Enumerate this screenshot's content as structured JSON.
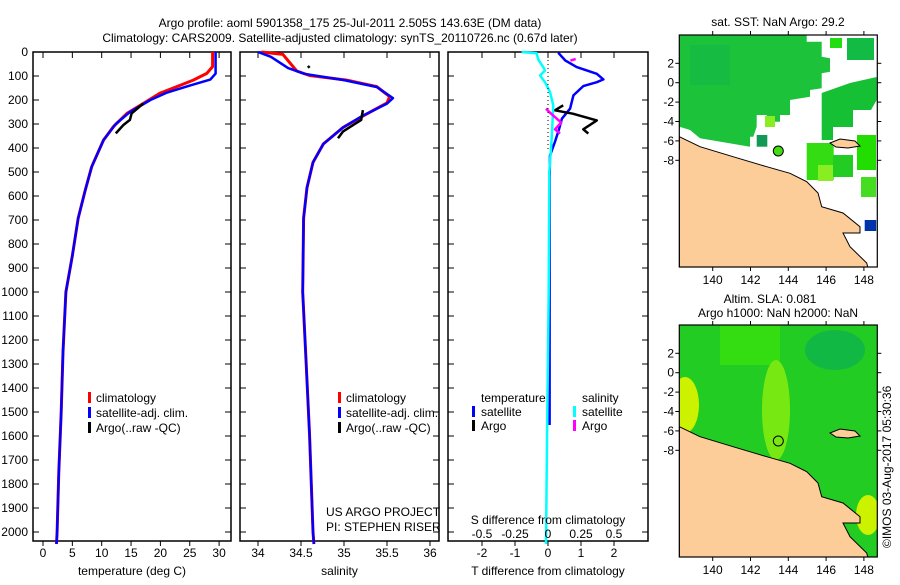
{
  "title": {
    "line1": "Argo profile: aoml 5901358_175 25-Jul-2011 2.505S 143.63E (DM data)",
    "line2": "Climatology: CARS2009. Satellite-adjusted climatology: synTS_20110726.nc (0.67d later)"
  },
  "colors": {
    "climatology": "#ff0000",
    "satellite": "#0000ff",
    "argo": "#000000",
    "s_satellite": "#00ffff",
    "s_argo": "#ff00ff",
    "land": "#fccc99",
    "ocean_green": "#22cc22"
  },
  "chart_data": [
    {
      "type": "line",
      "title": "",
      "xlabel": "temperature (deg C)",
      "ylabel": "",
      "xlim": [
        -1.5,
        32
      ],
      "ylim": [
        2050,
        0
      ],
      "xticks": [
        "0",
        "5",
        "10",
        "15",
        "20",
        "25",
        "30"
      ],
      "xtick_values": [
        0,
        5,
        10,
        15,
        20,
        25,
        30
      ],
      "yticks": [
        "0",
        "100",
        "200",
        "300",
        "400",
        "500",
        "600",
        "700",
        "800",
        "900",
        "1000",
        "1100",
        "1200",
        "1300",
        "1400",
        "1500",
        "1600",
        "1700",
        "1800",
        "1900",
        "2000"
      ],
      "legend": [
        "climatology",
        "satellite-adj. clim.",
        "Argo(..raw -QC)"
      ],
      "series": [
        {
          "name": "climatology",
          "color": "#ff0000",
          "points": [
            [
              28.9,
              0
            ],
            [
              28.9,
              61
            ],
            [
              27.9,
              89
            ],
            [
              25.6,
              117
            ],
            [
              22.8,
              144
            ],
            [
              19.9,
              172
            ],
            [
              17.1,
              214
            ],
            [
              14.3,
              256
            ],
            [
              12.0,
              311
            ],
            [
              10.3,
              367
            ],
            [
              8.3,
              478
            ],
            [
              7.2,
              575
            ],
            [
              6.0,
              692
            ],
            [
              5.0,
              850
            ],
            [
              3.9,
              1000
            ],
            [
              3.4,
              1250
            ],
            [
              3.1,
              1500
            ],
            [
              2.7,
              1750
            ],
            [
              2.4,
              2000
            ],
            [
              2.3,
              2050
            ]
          ]
        },
        {
          "name": "satellite-adj. clim.",
          "color": "#0000ff",
          "points": [
            [
              29.4,
              0
            ],
            [
              29.4,
              90
            ],
            [
              28.5,
              115
            ],
            [
              25.0,
              140
            ],
            [
              21.0,
              170
            ],
            [
              18.3,
              200
            ],
            [
              14.8,
              250
            ],
            [
              12.4,
              300
            ],
            [
              10.3,
              367
            ],
            [
              8.3,
              478
            ],
            [
              7.2,
              575
            ],
            [
              6.0,
              692
            ],
            [
              5.0,
              850
            ],
            [
              3.9,
              1000
            ],
            [
              3.4,
              1250
            ],
            [
              3.1,
              1500
            ],
            [
              2.7,
              1750
            ],
            [
              2.4,
              2000
            ],
            [
              2.3,
              2050
            ]
          ]
        },
        {
          "name": "Argo(..raw -QC)",
          "color": "#000000",
          "points": [
            [
              17.1,
              214
            ],
            [
              15.1,
              256
            ],
            [
              14.8,
              283
            ],
            [
              13.7,
              304
            ],
            [
              12.4,
              339
            ]
          ]
        }
      ]
    },
    {
      "type": "line",
      "xlabel": "salinity",
      "xlim": [
        33.8,
        36.1
      ],
      "ylim": [
        2050,
        0
      ],
      "xticks": [
        "34",
        "34.5",
        "35",
        "35.5",
        "36"
      ],
      "xtick_values": [
        34,
        34.5,
        35,
        35.5,
        36
      ],
      "legend": [
        "climatology",
        "satellite-adj. clim.",
        "Argo(..raw -QC)"
      ],
      "annotation": [
        "US ARGO PROJECT",
        "PI: STEPHEN RISER"
      ],
      "series": [
        {
          "name": "climatology",
          "color": "#ff0000",
          "points": [
            [
              34.04,
              0
            ],
            [
              34.29,
              10
            ],
            [
              34.45,
              79
            ],
            [
              34.6,
              98
            ],
            [
              35.03,
              117
            ],
            [
              35.38,
              144
            ],
            [
              35.53,
              186
            ],
            [
              35.5,
              212
            ],
            [
              35.22,
              267
            ],
            [
              34.99,
              314
            ],
            [
              34.76,
              383
            ],
            [
              34.64,
              460
            ],
            [
              34.57,
              565
            ],
            [
              34.53,
              692
            ],
            [
              34.52,
              1000
            ],
            [
              34.56,
              1300
            ],
            [
              34.6,
              1600
            ],
            [
              34.64,
              2000
            ],
            [
              34.65,
              2050
            ]
          ]
        },
        {
          "name": "satellite-adj. clim.",
          "color": "#0000ff",
          "points": [
            [
              34.0,
              0
            ],
            [
              34.15,
              20
            ],
            [
              34.35,
              67
            ],
            [
              34.54,
              91
            ],
            [
              35.0,
              117
            ],
            [
              35.38,
              146
            ],
            [
              35.57,
              192
            ],
            [
              35.5,
              215
            ],
            [
              35.22,
              265
            ],
            [
              34.99,
              314
            ],
            [
              34.76,
              383
            ],
            [
              34.64,
              460
            ],
            [
              34.57,
              565
            ],
            [
              34.53,
              692
            ],
            [
              34.52,
              1000
            ],
            [
              34.56,
              1300
            ],
            [
              34.6,
              1600
            ],
            [
              34.64,
              2000
            ],
            [
              34.65,
              2050
            ]
          ]
        },
        {
          "name": "Argo(..raw -QC)",
          "color": "#000000",
          "points": [
            [
              35.22,
              242
            ],
            [
              35.2,
              283
            ],
            [
              34.99,
              331
            ],
            [
              34.93,
              359
            ]
          ]
        },
        {
          "name": "Argo(..raw -QC) near-surface",
          "color": "#000000",
          "points": [
            [
              34.58,
              58
            ],
            [
              34.6,
              66
            ]
          ]
        }
      ]
    },
    {
      "type": "line",
      "xlabel": "T difference from climatology",
      "xlim": [
        -3,
        3
      ],
      "ylim": [
        2050,
        0
      ],
      "xticks": [
        "-2",
        "-1",
        "0",
        "1",
        "2"
      ],
      "xtick_values": [
        -2,
        -1,
        0,
        1,
        2
      ],
      "secondary_xlabel": "S difference from climatology",
      "secondary_xticks": [
        "-0.5",
        "-0.25",
        "0",
        "0.25",
        "0.5"
      ],
      "secondary_xtick_values": [
        -0.5,
        -0.25,
        0,
        0.25,
        0.5
      ],
      "legend": {
        "temperature_heading": "temperature",
        "salinity_heading": "salinity",
        "entries": [
          "satellite",
          "Argo",
          "satellite",
          "Argo"
        ]
      },
      "series": [
        {
          "name": "T satellite",
          "axis": "T",
          "color": "#0000ff",
          "points": [
            [
              0.31,
              3
            ],
            [
              0.52,
              35
            ],
            [
              0.87,
              63
            ],
            [
              1.48,
              91
            ],
            [
              1.68,
              114
            ],
            [
              1.48,
              126
            ],
            [
              1.07,
              142
            ],
            [
              0.77,
              181
            ],
            [
              0.67,
              236
            ],
            [
              0.42,
              278
            ],
            [
              0.34,
              319
            ],
            [
              0.21,
              375
            ],
            [
              0.06,
              431
            ],
            [
              0.05,
              528
            ],
            [
              0.05,
              1000
            ],
            [
              0.05,
              1554
            ]
          ]
        },
        {
          "name": "T Argo",
          "axis": "T",
          "color": "#000000",
          "points": [
            [
              0.46,
              222
            ],
            [
              0.21,
              243
            ],
            [
              0.75,
              257
            ],
            [
              1.48,
              285
            ],
            [
              1.07,
              322
            ],
            [
              1.22,
              340
            ]
          ]
        },
        {
          "name": "S satellite",
          "axis": "S",
          "color": "#00ffff",
          "points": [
            [
              -0.2,
              0
            ],
            [
              -0.086,
              5
            ],
            [
              -0.074,
              31
            ],
            [
              -0.036,
              63
            ],
            [
              -0.023,
              77
            ],
            [
              -0.06,
              98
            ],
            [
              -0.023,
              126
            ],
            [
              0.015,
              167
            ],
            [
              0.04,
              222
            ],
            [
              0.028,
              361
            ],
            [
              0.01,
              500
            ],
            [
              0.005,
              1000
            ],
            [
              -0.005,
              1500
            ],
            [
              -0.015,
              2050
            ]
          ]
        },
        {
          "name": "S Argo",
          "axis": "S",
          "color": "#ff00ff",
          "points": [
            [
              0.17,
              36
            ],
            [
              0.21,
              29
            ]
          ]
        },
        {
          "name": "S Argo deep",
          "axis": "S",
          "color": "#ff00ff",
          "points": [
            [
              -0.015,
              236
            ],
            [
              0.015,
              253
            ],
            [
              0.1,
              294
            ],
            [
              0.053,
              322
            ],
            [
              0.091,
              340
            ]
          ]
        }
      ]
    }
  ],
  "maps": {
    "sst": {
      "title": "sat. SST: NaN Argo: 29.2"
    },
    "sla": {
      "title_line1": "Altim. SLA: 0.081",
      "title_line2": "Argo h1000: NaN h2000: NaN"
    },
    "lon_ticks": [
      "140",
      "142",
      "144",
      "146",
      "148"
    ],
    "lat_ticks": [
      "2",
      "0",
      "-2",
      "-4",
      "-6",
      "-8"
    ]
  },
  "credit": "©IMOS 03-Aug-2017 05:30:36"
}
